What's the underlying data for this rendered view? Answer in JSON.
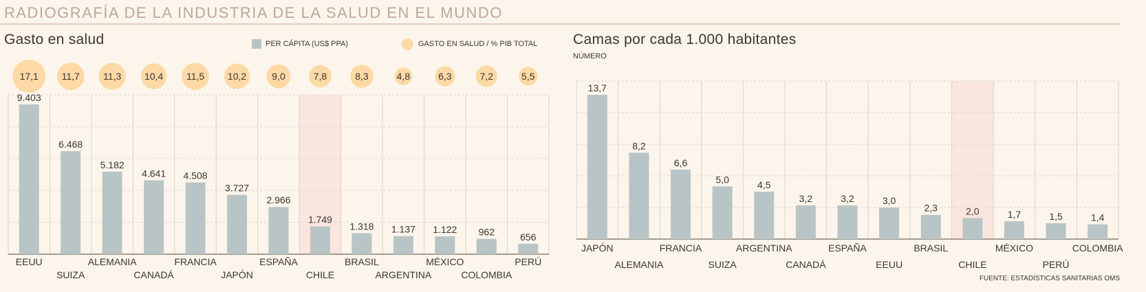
{
  "header": {
    "title": "RADIOGRAFÍA DE LA INDUSTRIA DE LA SALUD EN EL MUNDO",
    "source": "FUENTE: ESTADÍSTICAS SANITARIAS OMS"
  },
  "colors": {
    "bar": "#b9c4c6",
    "bubble": "#fcd9a5",
    "highlight_band": "#fbe6df",
    "grid": "#d9d4cc",
    "axis": "#6d6761"
  },
  "chart_data": [
    {
      "type": "bar",
      "title": "Gasto en salud",
      "highlight_category": "CHILE",
      "categories": [
        "EEUU",
        "SUIZA",
        "ALEMANIA",
        "CANADÁ",
        "FRANCIA",
        "JAPÓN",
        "ESPAÑA",
        "CHILE",
        "BRASIL",
        "ARGENTINA",
        "MÉXICO",
        "COLOMBIA",
        "PERÚ"
      ],
      "series": [
        {
          "name": "PER CÁPITA (US$ PPA)",
          "values": [
            9403,
            6468,
            5182,
            4641,
            4508,
            3727,
            2966,
            1749,
            1318,
            1137,
            1122,
            962,
            656
          ],
          "labels": [
            "9.403",
            "6.468",
            "5.182",
            "4.641",
            "4.508",
            "3.727",
            "2.966",
            "1.749",
            "1.318",
            "1.137",
            "1.122",
            "962",
            "656"
          ]
        },
        {
          "name": "GASTO EN SALUD / % PIB TOTAL",
          "values": [
            17.1,
            11.7,
            11.3,
            10.4,
            11.5,
            10.2,
            9.0,
            7.8,
            8.3,
            4.8,
            6.3,
            7.2,
            5.5
          ],
          "labels": [
            "17,1",
            "11,7",
            "11,3",
            "10,4",
            "11,5",
            "10,2",
            "9,0",
            "7,8",
            "8,3",
            "4,8",
            "6,3",
            "7,2",
            "5,5"
          ]
        }
      ],
      "ylim": [
        0,
        9403
      ],
      "grid": true,
      "legend_placement": "top-right"
    },
    {
      "type": "bar",
      "title": "Camas por cada 1.000 habitantes",
      "subtitle": "NÚMERO",
      "highlight_category": "CHILE",
      "categories": [
        "JAPÓN",
        "ALEMANIA",
        "FRANCIA",
        "SUIZA",
        "ARGENTINA",
        "CANADÁ",
        "ESPAÑA",
        "EEUU",
        "BRASIL",
        "CHILE",
        "MÉXICO",
        "PERÚ",
        "COLOMBIA"
      ],
      "values": [
        13.7,
        8.2,
        6.6,
        5.0,
        4.5,
        3.2,
        3.2,
        3.0,
        2.3,
        2.0,
        1.7,
        1.5,
        1.4
      ],
      "labels": [
        "13,7",
        "8,2",
        "6,6",
        "5,0",
        "4,5",
        "3,2",
        "3,2",
        "3,0",
        "2,3",
        "2,0",
        "1,7",
        "1,5",
        "1,4"
      ],
      "ylim": [
        0,
        13.7
      ],
      "grid": true
    }
  ]
}
